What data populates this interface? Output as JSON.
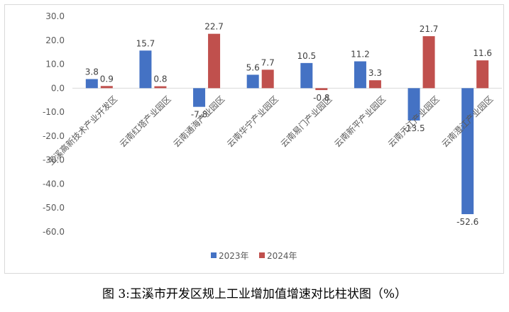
{
  "caption": "图 3:玉溪市开发区规上工业增加值增速对比柱状图（%）",
  "chart_data": {
    "type": "bar",
    "categories": [
      "玉溪高新技术产业开发区",
      "云南红塔产业园区",
      "云南通海产业园区",
      "云南华宁产业园区",
      "云南易门产业园区",
      "云南新平产业园区",
      "云南元江产业园区",
      "云南澄江产业园区"
    ],
    "series": [
      {
        "name": "2023年",
        "color": "#4472C4",
        "values": [
          3.8,
          15.7,
          -7.8,
          5.6,
          10.5,
          11.2,
          -13.5,
          -52.6
        ]
      },
      {
        "name": "2024年",
        "color": "#C0504D",
        "values": [
          0.9,
          0.8,
          22.7,
          7.7,
          -0.8,
          3.3,
          21.7,
          11.6
        ]
      }
    ],
    "ylim": [
      -60,
      30
    ],
    "yticks": [
      "30.0",
      "20.0",
      "10.0",
      "0.0",
      "-10.0",
      "-20.0",
      "-30.0",
      "-40.0",
      "-50.0",
      "-60.0"
    ],
    "ytick_values": [
      30,
      20,
      10,
      0,
      -10,
      -20,
      -30,
      -40,
      -50,
      -60
    ],
    "data_labels": [
      [
        "3.8",
        "15.7",
        "-7.8",
        "5.6",
        "10.5",
        "11.2",
        "-13.5",
        "-52.6"
      ],
      [
        "0.9",
        "0.8",
        "22.7",
        "7.7",
        "-0.8",
        "3.3",
        "21.7",
        "11.6"
      ]
    ],
    "legend_position": "bottom",
    "grid": false
  }
}
